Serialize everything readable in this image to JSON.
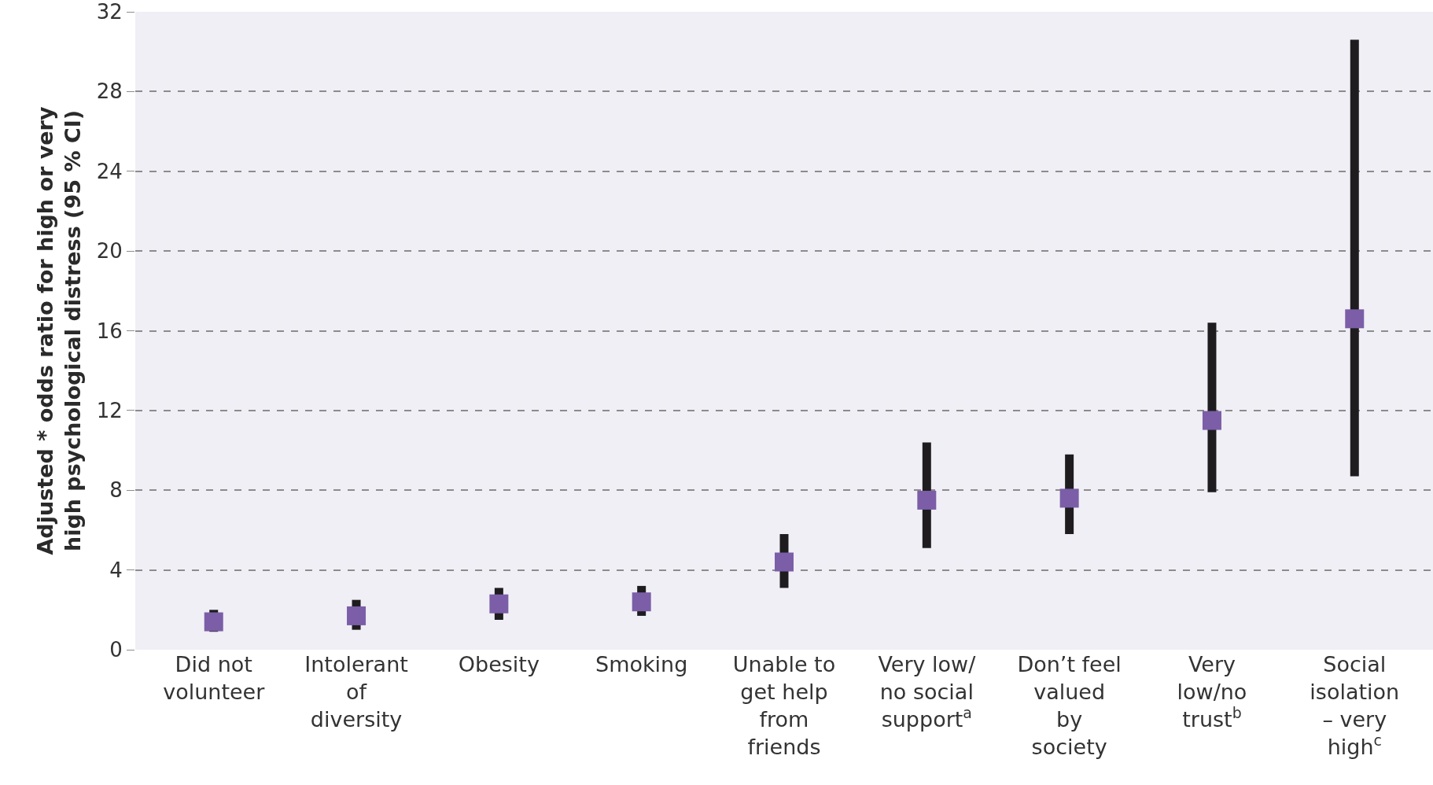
{
  "chart_data": {
    "type": "scatter",
    "ylabel": "Adjusted * odds ratio for high or very\nhigh psychological distress (95 % CI)",
    "categories": [
      "Did not\nvolunteer",
      "Intolerant\nof\ndiversity",
      "Obesity",
      "Smoking",
      "Unable to\nget help\nfrom\nfriends",
      "Very low/\nno social\nsupport$^{a}$",
      "Don’t feel\nvalued\nby\nsociety",
      "Very\nlow/no\ntrust$^{b}$",
      "Social\nisolation\n– very\nhigh$^{c}$"
    ],
    "series": [
      {
        "color": "#7b5ea7",
        "values": [
          1.4,
          1.7,
          2.3,
          2.4,
          4.4,
          7.5,
          7.6,
          11.5,
          16.6
        ],
        "errors": [
          [
            0.9,
            2.0
          ],
          [
            1.0,
            2.5
          ],
          [
            1.5,
            3.1
          ],
          [
            1.7,
            3.2
          ],
          [
            3.1,
            5.8
          ],
          [
            5.1,
            10.4
          ],
          [
            5.8,
            9.8
          ],
          [
            7.9,
            16.4
          ],
          [
            8.7,
            30.6
          ]
        ]
      }
    ],
    "ylim": [
      0,
      32
    ],
    "yticks": [
      0,
      4,
      8,
      12,
      16,
      20,
      24,
      28,
      32
    ],
    "grid": "y",
    "marker": "square"
  }
}
